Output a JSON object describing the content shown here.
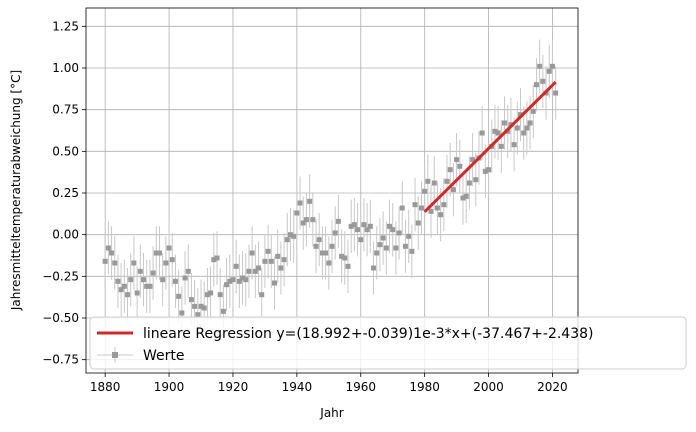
{
  "chart_data": {
    "type": "scatter",
    "xlabel": "Jahr",
    "ylabel": "Jahresmitteltemperaturabweichung [°C]",
    "xlim": [
      1874,
      2028
    ],
    "ylim": [
      -0.83,
      1.36
    ],
    "xticks": [
      1880,
      1900,
      1920,
      1940,
      1960,
      1980,
      2000,
      2020
    ],
    "yticks": [
      -0.75,
      -0.5,
      -0.25,
      0.0,
      0.25,
      0.5,
      0.75,
      1.0,
      1.25
    ],
    "xtick_labels": [
      "1880",
      "1900",
      "1920",
      "1940",
      "1960",
      "1980",
      "2000",
      "2020"
    ],
    "ytick_labels": [
      "−0.75",
      "−0.50",
      "−0.25",
      "0.00",
      "0.25",
      "0.50",
      "0.75",
      "1.00",
      "1.25"
    ],
    "grid": true,
    "legend_position": "lower-right",
    "colors": {
      "points": "#999999",
      "errorbars": "#c8c8c8",
      "regression": "#d62728"
    },
    "series": [
      {
        "name": "Werte",
        "x_start": 1880,
        "x_step": 1,
        "values": [
          -0.16,
          -0.08,
          -0.11,
          -0.17,
          -0.28,
          -0.33,
          -0.31,
          -0.36,
          -0.27,
          -0.17,
          -0.35,
          -0.22,
          -0.27,
          -0.31,
          -0.31,
          -0.23,
          -0.11,
          -0.11,
          -0.27,
          -0.17,
          -0.08,
          -0.15,
          -0.28,
          -0.37,
          -0.47,
          -0.26,
          -0.22,
          -0.39,
          -0.43,
          -0.48,
          -0.43,
          -0.44,
          -0.36,
          -0.35,
          -0.15,
          -0.14,
          -0.36,
          -0.46,
          -0.3,
          -0.28,
          -0.27,
          -0.19,
          -0.28,
          -0.26,
          -0.27,
          -0.22,
          -0.11,
          -0.22,
          -0.2,
          -0.36,
          -0.16,
          -0.1,
          -0.16,
          -0.29,
          -0.13,
          -0.2,
          -0.15,
          -0.03,
          -0.0,
          -0.01,
          0.13,
          0.19,
          0.07,
          0.09,
          0.2,
          0.09,
          -0.07,
          -0.03,
          -0.11,
          -0.11,
          -0.17,
          -0.07,
          0.01,
          0.08,
          -0.13,
          -0.14,
          -0.19,
          0.05,
          0.06,
          0.03,
          -0.03,
          0.06,
          0.03,
          0.05,
          -0.2,
          -0.11,
          -0.06,
          -0.02,
          -0.08,
          0.05,
          0.03,
          -0.08,
          0.01,
          0.16,
          -0.07,
          -0.01,
          -0.1,
          0.18,
          0.07,
          0.16,
          0.26,
          0.32,
          0.14,
          0.31,
          0.16,
          0.12,
          0.18,
          0.32,
          0.39,
          0.27,
          0.45,
          0.41,
          0.22,
          0.23,
          0.31,
          0.45,
          0.33,
          0.46,
          0.61,
          0.38,
          0.39,
          0.53,
          0.62,
          0.61,
          0.53,
          0.67,
          0.62,
          0.66,
          0.54,
          0.64,
          0.72,
          0.61,
          0.64,
          0.67,
          0.74,
          0.9,
          1.01,
          0.92,
          0.85,
          0.98,
          1.01,
          0.85
        ],
        "error": 0.16
      },
      {
        "name": "lineare Regression y=(18.992+-0.039)1e-3*x+(-37.467+-2.438)",
        "type": "line",
        "x": [
          1980,
          2021
        ],
        "slope": 0.018992,
        "intercept": -37.467
      }
    ]
  },
  "legend": {
    "regression_label": "lineare Regression y=(18.992+-0.039)1e-3*x+(-37.467+-2.438)",
    "data_label": "Werte"
  }
}
